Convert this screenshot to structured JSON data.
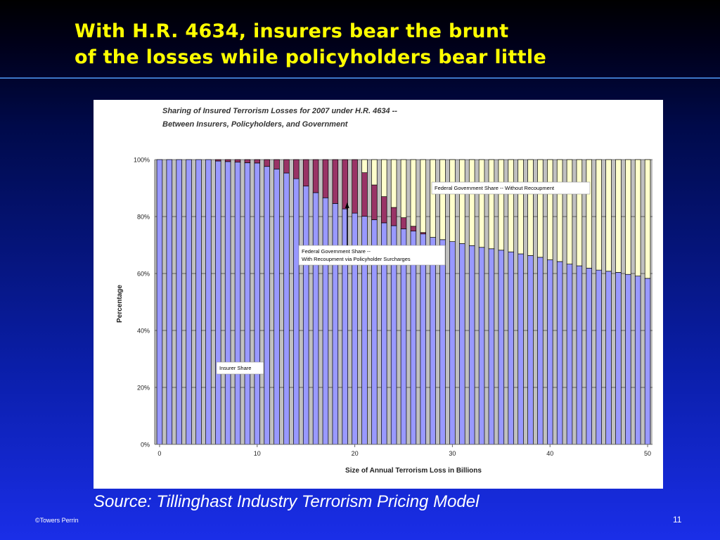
{
  "slide": {
    "title_line1": "With H.R. 4634, insurers bear the brunt",
    "title_line2": "of the losses while policyholders bear little",
    "source": "Source: Tillinghast Industry Terrorism Pricing Model",
    "footer": "©Towers Perrin",
    "page_number": "11"
  },
  "chart_data": {
    "type": "bar",
    "stacked": true,
    "title_line1": "Sharing of Insured Terrorism Losses for 2007 under H.R. 4634 --",
    "title_line2": "Between Insurers, Policyholders, and Government",
    "xlabel": "Size of Annual Terrorism Loss in Billions",
    "ylabel": "Percentage",
    "xlim": [
      0,
      50
    ],
    "ylim": [
      0,
      100
    ],
    "x_ticks": [
      "0",
      "10",
      "20",
      "30",
      "40",
      "50"
    ],
    "y_ticks": [
      "0%",
      "20%",
      "40%",
      "60%",
      "80%",
      "100%"
    ],
    "grid": true,
    "x": [
      0,
      1,
      2,
      3,
      4,
      5,
      6,
      7,
      8,
      9,
      10,
      11,
      12,
      13,
      14,
      15,
      16,
      17,
      18,
      19,
      20,
      21,
      22,
      23,
      24,
      25,
      26,
      27,
      28,
      29,
      30,
      31,
      32,
      33,
      34,
      35,
      36,
      37,
      38,
      39,
      40,
      41,
      42,
      43,
      44,
      45,
      46,
      47,
      48,
      49,
      50
    ],
    "series": [
      {
        "name": "Insurer Share",
        "color": "#9999ff",
        "values": [
          100,
          100,
          100,
          100,
          100,
          100,
          99.5,
          99.3,
          99.1,
          98.9,
          98.8,
          97.6,
          96.7,
          95.3,
          93.3,
          90.7,
          88.4,
          86.6,
          84.6,
          82.7,
          81.2,
          80.1,
          78.9,
          77.8,
          76.8,
          75.7,
          74.9,
          73.9,
          72.7,
          71.9,
          71.2,
          70.5,
          69.8,
          69.2,
          68.7,
          68.2,
          67.6,
          66.9,
          66.3,
          65.7,
          64.8,
          64.2,
          63.3,
          62.7,
          61.9,
          61.2,
          60.8,
          60.4,
          59.7,
          59.1,
          58.3
        ]
      },
      {
        "name": "Federal Government Share -- With Recoupment via Policyholder Surcharges",
        "color": "#993366",
        "values": [
          0,
          0,
          0,
          0,
          0,
          0,
          0.5,
          0.7,
          0.9,
          1.1,
          1.2,
          2.4,
          3.3,
          4.7,
          6.7,
          9.3,
          11.6,
          13.4,
          15.4,
          17.3,
          18.8,
          15.3,
          12.2,
          9.2,
          6.4,
          3.9,
          1.7,
          0.5,
          0,
          0,
          0,
          0,
          0,
          0,
          0,
          0,
          0,
          0,
          0,
          0,
          0,
          0,
          0,
          0,
          0,
          0,
          0,
          0,
          0,
          0,
          0
        ]
      },
      {
        "name": "Federal Government Share -- Without Recoupment",
        "color": "#ffffcc",
        "values": [
          0,
          0,
          0,
          0,
          0,
          0,
          0,
          0,
          0,
          0,
          0,
          0,
          0,
          0,
          0,
          0,
          0,
          0,
          0,
          0,
          0,
          4.6,
          8.9,
          13.0,
          16.8,
          20.4,
          23.4,
          25.6,
          27.3,
          28.1,
          28.8,
          29.5,
          30.2,
          30.8,
          31.3,
          31.8,
          32.4,
          33.1,
          33.7,
          34.3,
          35.2,
          35.8,
          36.7,
          37.3,
          38.1,
          38.8,
          39.2,
          39.6,
          40.3,
          40.9,
          41.7
        ]
      }
    ],
    "annotations": {
      "insurer": "Insurer Share",
      "without_recoupment": "Federal Government Share -- Without Recoupment",
      "with_recoupment_line1": "Federal Government Share --",
      "with_recoupment_line2": "With Recoupment via Policyholder Surcharges"
    },
    "plot_background": "#c0c0c0"
  }
}
